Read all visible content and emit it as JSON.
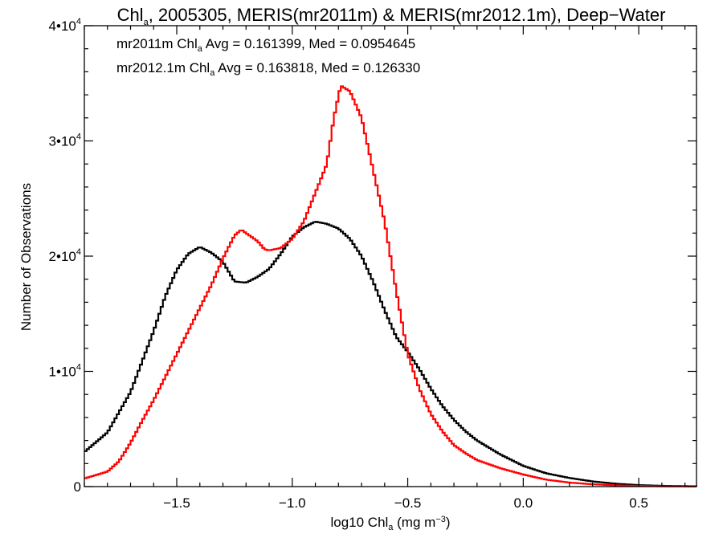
{
  "chart_data": {
    "type": "line",
    "title": {
      "main": "Chl",
      "sub": "a",
      "rest": ", 2005305, MERIS(mr2011m) & MERIS(mr2012.1m), Deep−Water"
    },
    "xlabel": {
      "pre": "log10 Chl",
      "sub": "a",
      "mid": " (mg m",
      "sup": "−3",
      "post": ")"
    },
    "ylabel": "Number of Observations",
    "xlim": [
      -1.9,
      0.75
    ],
    "ylim": [
      0,
      40000
    ],
    "x_ticks": [
      {
        "value": -1.5,
        "label": "−1.5"
      },
      {
        "value": -1.0,
        "label": "−1.0"
      },
      {
        "value": -0.5,
        "label": "−0.5"
      },
      {
        "value": 0.0,
        "label": "0.0"
      },
      {
        "value": 0.5,
        "label": "0.5"
      }
    ],
    "x_minor_step": 0.1,
    "y_ticks": [
      {
        "value": 0,
        "mant": "0",
        "exp": ""
      },
      {
        "value": 10000,
        "mant": "1•10",
        "exp": "4"
      },
      {
        "value": 20000,
        "mant": "2•10",
        "exp": "4"
      },
      {
        "value": 30000,
        "mant": "3•10",
        "exp": "4"
      },
      {
        "value": 40000,
        "mant": "4•10",
        "exp": "4"
      }
    ],
    "y_minor_step": 2000,
    "grid": false,
    "legend_position": "top-left",
    "series": [
      {
        "color": "#000000",
        "legend": {
          "pre": "mr2011m Chl",
          "sub": "a",
          "post": " Avg = 0.161399, Med = 0.0954645"
        },
        "points": [
          [
            -1.9,
            3000
          ],
          [
            -1.8,
            4700
          ],
          [
            -1.7,
            8200
          ],
          [
            -1.6,
            13500
          ],
          [
            -1.55,
            16500
          ],
          [
            -1.5,
            18800
          ],
          [
            -1.45,
            20200
          ],
          [
            -1.4,
            20800
          ],
          [
            -1.35,
            20300
          ],
          [
            -1.3,
            19500
          ],
          [
            -1.25,
            17800
          ],
          [
            -1.2,
            17700
          ],
          [
            -1.15,
            18200
          ],
          [
            -1.1,
            18900
          ],
          [
            -1.05,
            20200
          ],
          [
            -1.0,
            21700
          ],
          [
            -0.95,
            22500
          ],
          [
            -0.9,
            23000
          ],
          [
            -0.85,
            22800
          ],
          [
            -0.8,
            22400
          ],
          [
            -0.75,
            21500
          ],
          [
            -0.7,
            20000
          ],
          [
            -0.65,
            17800
          ],
          [
            -0.6,
            15300
          ],
          [
            -0.55,
            13000
          ],
          [
            -0.5,
            11700
          ],
          [
            -0.45,
            10200
          ],
          [
            -0.4,
            8500
          ],
          [
            -0.35,
            7000
          ],
          [
            -0.3,
            5800
          ],
          [
            -0.25,
            4800
          ],
          [
            -0.2,
            4000
          ],
          [
            -0.1,
            2800
          ],
          [
            0.0,
            1800
          ],
          [
            0.1,
            1150
          ],
          [
            0.2,
            750
          ],
          [
            0.3,
            450
          ],
          [
            0.4,
            250
          ],
          [
            0.5,
            130
          ],
          [
            0.6,
            70
          ],
          [
            0.75,
            30
          ]
        ]
      },
      {
        "color": "#ff0000",
        "legend": {
          "pre": "mr2012.1m Chl",
          "sub": "a",
          "post": " Avg = 0.163818, Med = 0.126330"
        },
        "points": [
          [
            -1.9,
            700
          ],
          [
            -1.8,
            1300
          ],
          [
            -1.75,
            2200
          ],
          [
            -1.7,
            3800
          ],
          [
            -1.65,
            5700
          ],
          [
            -1.6,
            7500
          ],
          [
            -1.55,
            9500
          ],
          [
            -1.5,
            11500
          ],
          [
            -1.45,
            13500
          ],
          [
            -1.4,
            15500
          ],
          [
            -1.35,
            17500
          ],
          [
            -1.3,
            19800
          ],
          [
            -1.25,
            21800
          ],
          [
            -1.22,
            22300
          ],
          [
            -1.2,
            22000
          ],
          [
            -1.15,
            21300
          ],
          [
            -1.12,
            20600
          ],
          [
            -1.1,
            20500
          ],
          [
            -1.05,
            20700
          ],
          [
            -1.0,
            21500
          ],
          [
            -0.95,
            23000
          ],
          [
            -0.9,
            25500
          ],
          [
            -0.85,
            28000
          ],
          [
            -0.82,
            32000
          ],
          [
            -0.79,
            34800
          ],
          [
            -0.75,
            34300
          ],
          [
            -0.7,
            32000
          ],
          [
            -0.65,
            27500
          ],
          [
            -0.6,
            23000
          ],
          [
            -0.55,
            17000
          ],
          [
            -0.5,
            11500
          ],
          [
            -0.45,
            8500
          ],
          [
            -0.4,
            6300
          ],
          [
            -0.35,
            4800
          ],
          [
            -0.3,
            3600
          ],
          [
            -0.25,
            2900
          ],
          [
            -0.2,
            2300
          ],
          [
            -0.1,
            1600
          ],
          [
            0.0,
            1050
          ],
          [
            0.1,
            600
          ],
          [
            0.2,
            350
          ],
          [
            0.3,
            200
          ],
          [
            0.4,
            110
          ],
          [
            0.5,
            60
          ],
          [
            0.6,
            30
          ],
          [
            0.75,
            15
          ]
        ]
      }
    ]
  }
}
